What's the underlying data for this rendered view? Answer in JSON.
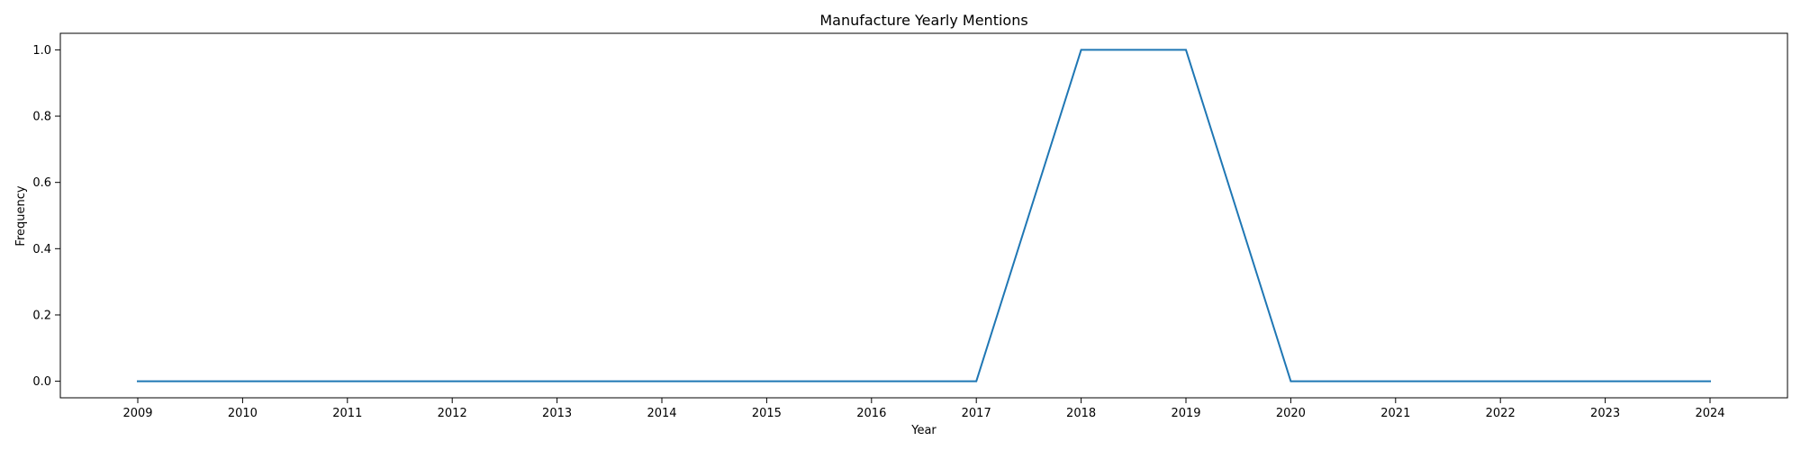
{
  "chart_data": {
    "type": "line",
    "title": "Manufacture Yearly Mentions",
    "xlabel": "Year",
    "ylabel": "Frequency",
    "x": [
      "2009",
      "2010",
      "2011",
      "2012",
      "2013",
      "2014",
      "2015",
      "2016",
      "2017",
      "2018",
      "2019",
      "2020",
      "2021",
      "2022",
      "2023",
      "2024"
    ],
    "series": [
      {
        "values": [
          0,
          0,
          0,
          0,
          0,
          0,
          0,
          0,
          0,
          1,
          1,
          0,
          0,
          0,
          0,
          0
        ],
        "color": "#1f77b4"
      }
    ],
    "ylim": [
      -0.05,
      1.05
    ],
    "yticks": [
      0.0,
      0.2,
      0.4,
      0.6,
      0.8,
      1.0
    ],
    "ytick_labels": [
      "0.0",
      "0.2",
      "0.4",
      "0.6",
      "0.8",
      "1.0"
    ],
    "grid": false,
    "legend": "none"
  }
}
